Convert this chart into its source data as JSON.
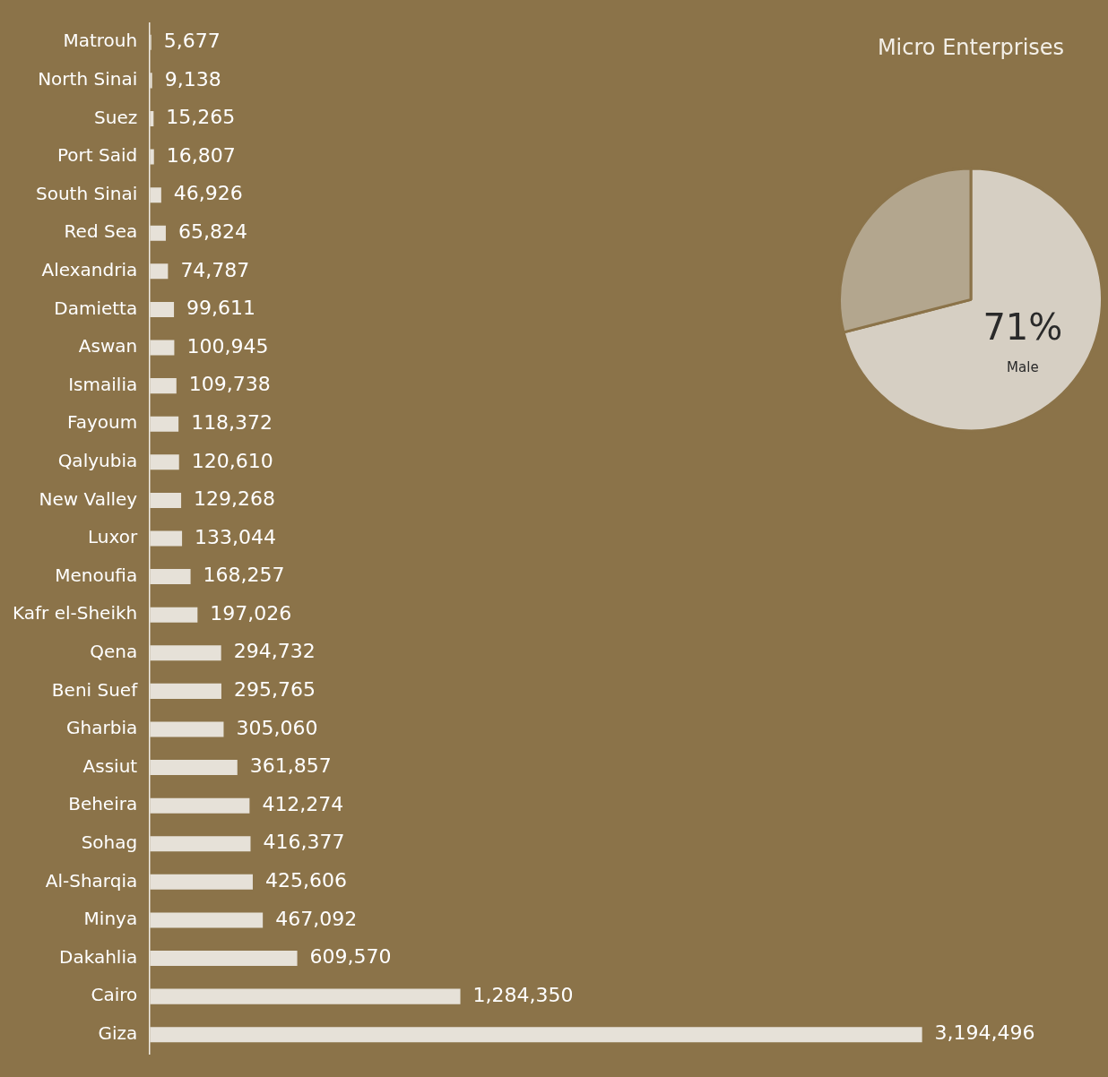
{
  "chart_data": [
    {
      "type": "bar",
      "orientation": "horizontal",
      "categories": [
        "Matrouh",
        "North Sinai",
        "Suez",
        "Port Said",
        "South Sinai",
        "Red Sea",
        "Alexandria",
        "Damietta",
        "Aswan",
        "Ismailia",
        "Fayoum",
        "Qalyubia",
        "New Valley",
        "Luxor",
        "Menoufia",
        "Kafr el-Sheikh",
        "Qena",
        "Beni Suef",
        "Gharbia",
        "Assiut",
        "Beheira",
        "Sohag",
        "Al-Sharqia",
        "Minya",
        "Dakahlia",
        "Cairo",
        "Giza"
      ],
      "values": [
        5677,
        9138,
        15265,
        16807,
        46926,
        65824,
        74787,
        99611,
        100945,
        109738,
        118372,
        120610,
        129268,
        133044,
        168257,
        197026,
        294732,
        295765,
        305060,
        361857,
        412274,
        416377,
        425606,
        467092,
        609570,
        1284350,
        3194496
      ],
      "value_labels": [
        "5,677",
        "9,138",
        "15,265",
        "16,807",
        "46,926",
        "65,824",
        "74,787",
        "99,611",
        "100,945",
        "109,738",
        "118,372",
        "120,610",
        "129,268",
        "133,044",
        "168,257",
        "197,026",
        "294,732",
        "295,765",
        "305,060",
        "361,857",
        "412,274",
        "416,377",
        "425,606",
        "467,092",
        "609,570",
        "1,284,350",
        "3,194,496"
      ],
      "color": "#e6e1d8"
    },
    {
      "type": "pie",
      "title": "Micro Enterprises",
      "categories": [
        "Male",
        null
      ],
      "values": [
        71,
        29
      ],
      "colors": [
        "#d6cfc3",
        "#b3a68e"
      ],
      "value_labels": [
        "71%",
        null
      ]
    }
  ]
}
